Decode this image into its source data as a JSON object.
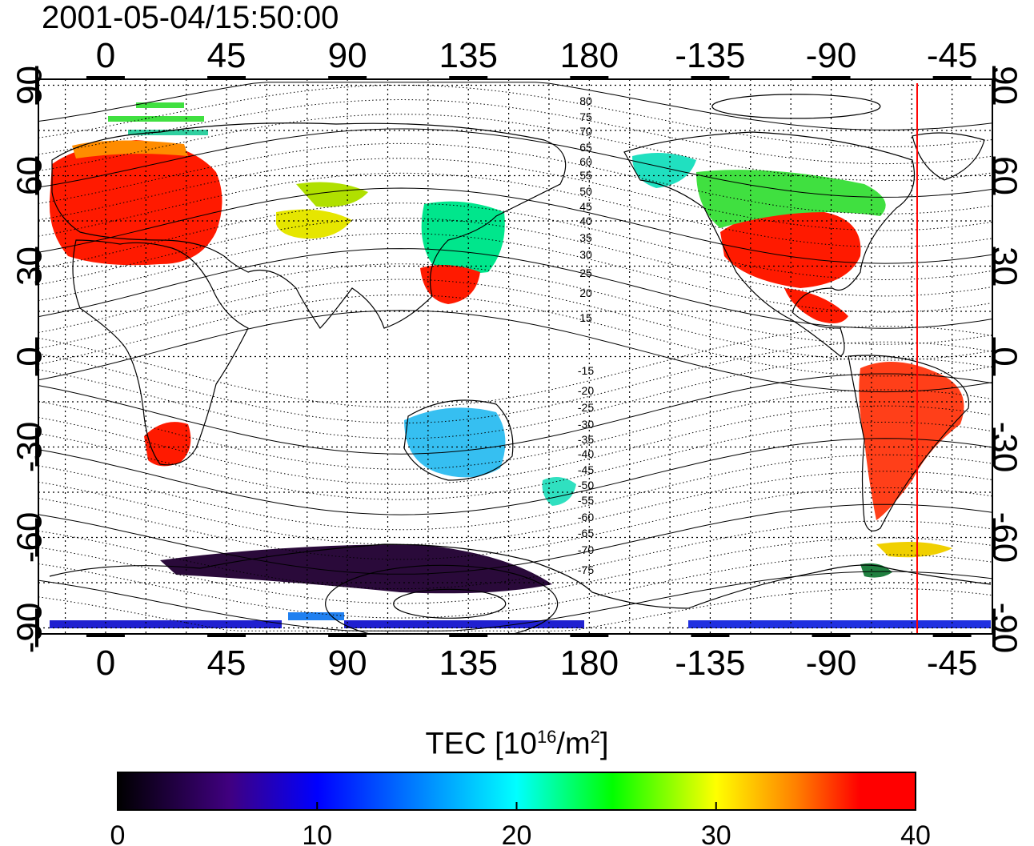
{
  "timestamp": "2001-05-04/15:50:00",
  "map": {
    "lon_ticks": [
      "0",
      "45",
      "90",
      "135",
      "180",
      "-135",
      "-90",
      "-45"
    ],
    "lat_ticks": [
      "90",
      "60",
      "30",
      "0",
      "-30",
      "-60",
      "-90"
    ],
    "lon_range": [
      -25,
      330
    ],
    "lat_range": [
      -92,
      92
    ],
    "magnetic_latitude_labels": [
      "80",
      "75",
      "70",
      "65",
      "60",
      "55",
      "50",
      "45",
      "40",
      "35",
      "30",
      "25",
      "20",
      "15",
      "-15",
      "-20",
      "-25",
      "-30",
      "-35",
      "-40",
      "-45",
      "-50",
      "-55",
      "-60",
      "-65",
      "-70",
      "-75"
    ],
    "terminator_longitude": -58,
    "terminator_color": "#ff0000",
    "grid": true
  },
  "colorbar": {
    "label_prefix": "TEC  [10",
    "label_sup1": "16",
    "label_mid": "/m",
    "label_sup2": "2",
    "label_suffix": "]",
    "ticks": [
      "0",
      "10",
      "20",
      "30",
      "40"
    ],
    "range": [
      0,
      40
    ],
    "colors": [
      "#000000",
      "#400080",
      "#0000ff",
      "#00ffff",
      "#00ff00",
      "#ffff00",
      "#ff8000",
      "#ff0000"
    ]
  }
}
